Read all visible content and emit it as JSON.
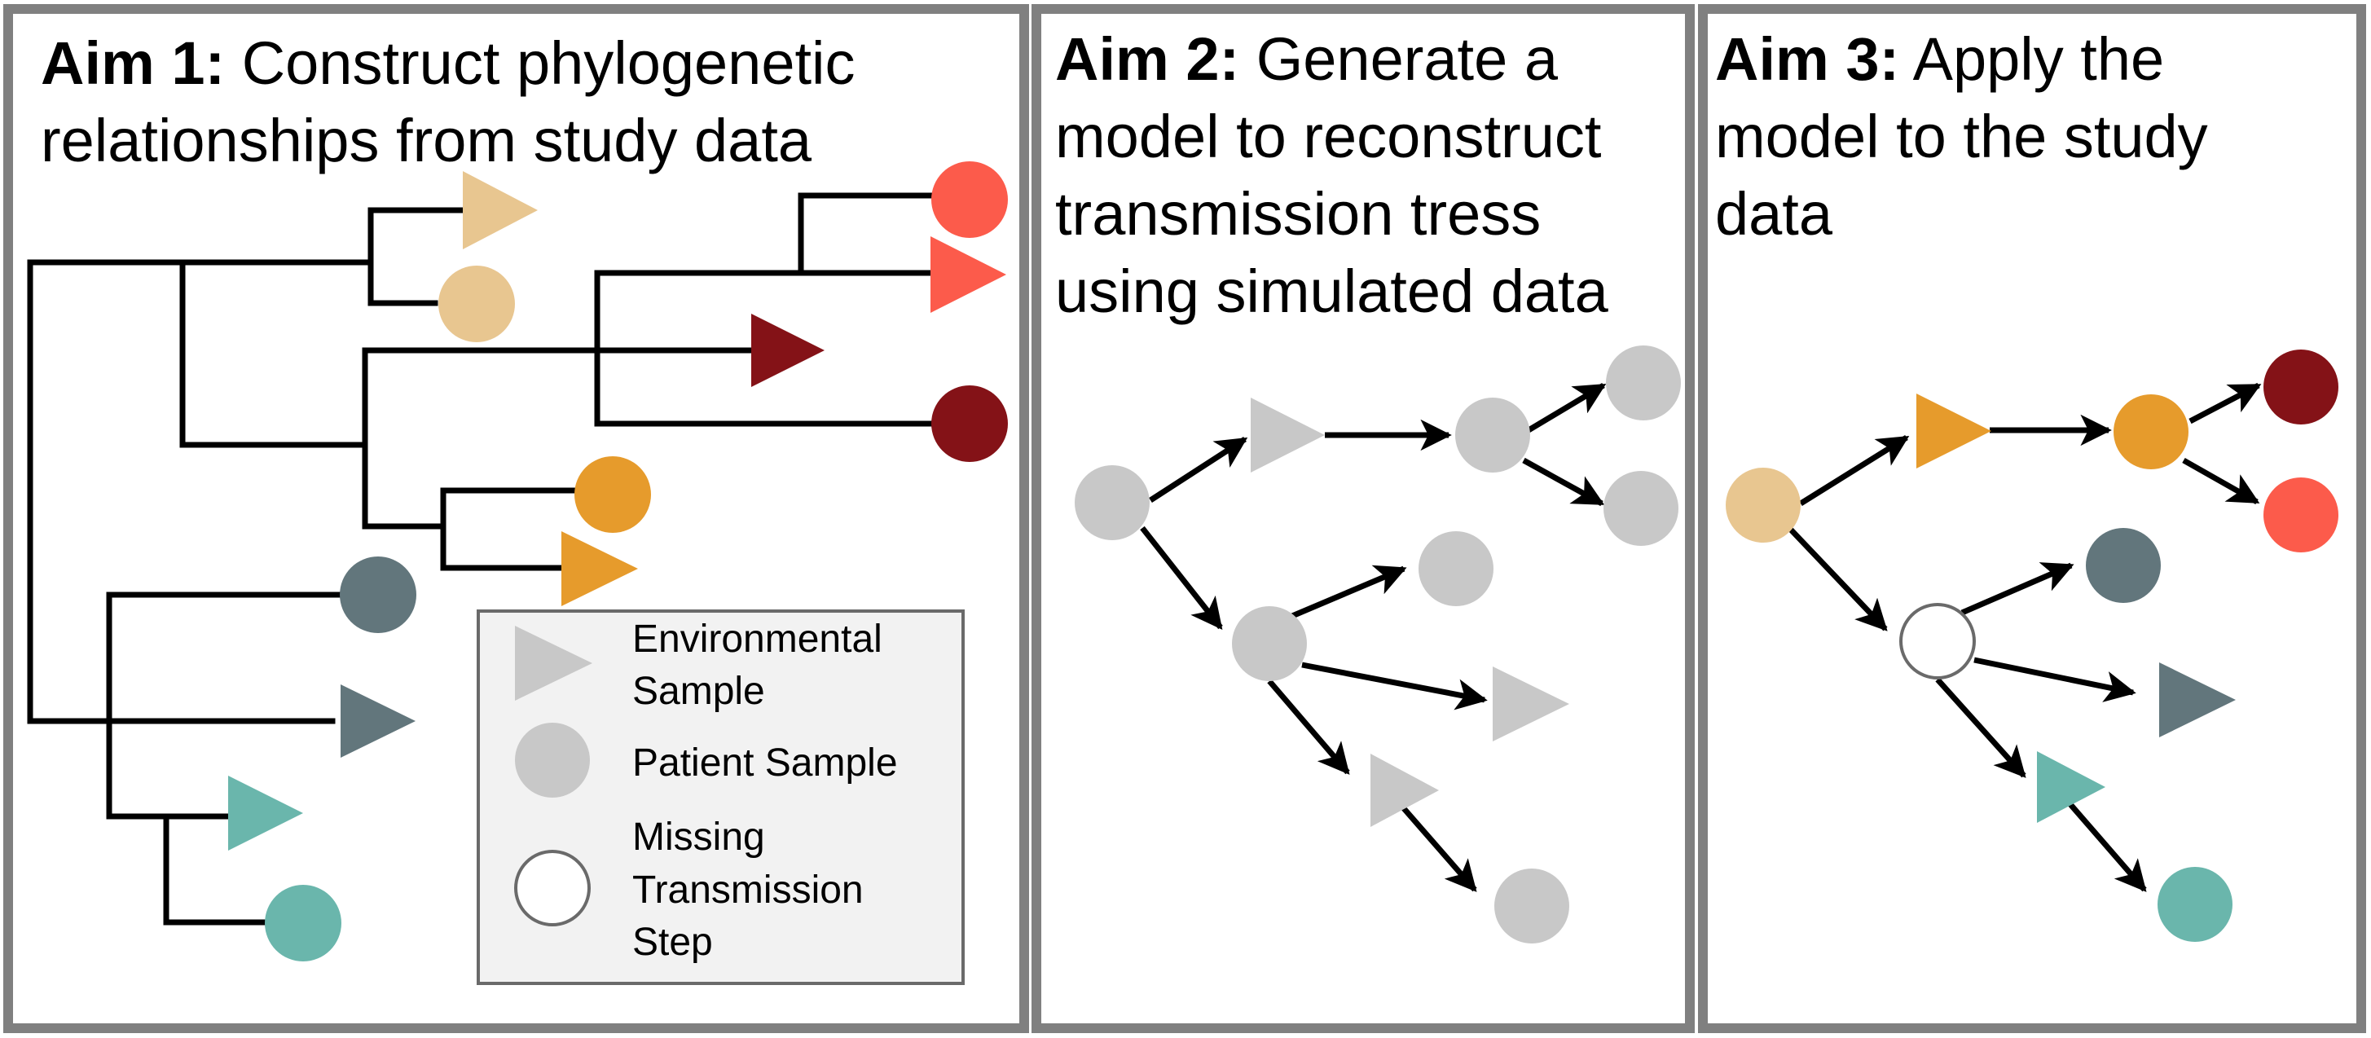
{
  "panels": [
    {
      "id": "aim1",
      "label": "Aim 1:",
      "title_lines": [
        " Construct phylogenetic",
        "relationships from study data"
      ]
    },
    {
      "id": "aim2",
      "label": "Aim 2:",
      "title_lines": [
        " Generate a",
        "model to reconstruct",
        "transmission tress",
        "using simulated data"
      ]
    },
    {
      "id": "aim3",
      "label": "Aim 3:",
      "title_lines": [
        " Apply the",
        "model to the study",
        "data"
      ]
    }
  ],
  "legend": {
    "environmental_sample": [
      "Environmental",
      "Sample"
    ],
    "patient_sample": [
      "Patient Sample"
    ],
    "missing_step": [
      "Missing",
      "Transmission",
      "Step"
    ]
  },
  "colors": {
    "frame": "#808080",
    "legend_bg": "#f2f2f2",
    "gray": "#c8c8c8",
    "tan": "#e8c690",
    "red": "#fc5b4b",
    "dark_red": "#841217",
    "orange": "#e69b2c",
    "slate": "#62767c",
    "teal": "#6ab6ac"
  }
}
